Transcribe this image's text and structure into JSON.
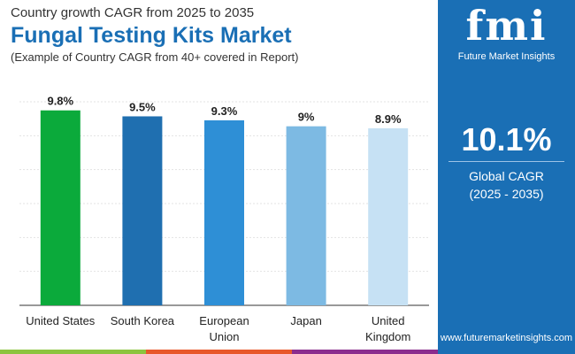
{
  "header": {
    "subtitle": "Country growth CAGR from 2025 to 2035",
    "title": "Fungal Testing Kits Market",
    "note": "(Example of Country CAGR from 40+ covered in Report)"
  },
  "panel": {
    "logo": "fmi",
    "logo_sub": "Future Market Insights",
    "value": "10.1%",
    "label1": "Global CAGR",
    "label2": "(2025 - 2035)",
    "url": "www.futuremarketinsights.com",
    "bg": "#1a6fb5"
  },
  "chart_data": {
    "type": "bar",
    "categories": [
      "United States",
      "South Korea",
      "European Union",
      "Japan",
      "United Kingdom"
    ],
    "values": [
      9.8,
      9.5,
      9.3,
      9,
      8.9
    ],
    "labels": [
      "9.8%",
      "9.5%",
      "9.3%",
      "9%",
      "8.9%"
    ],
    "colors": [
      "#0baa3b",
      "#1f6fb0",
      "#2e8fd6",
      "#7dbae3",
      "#c6e1f4"
    ],
    "ylim": [
      0,
      10.9
    ],
    "grid": true
  }
}
